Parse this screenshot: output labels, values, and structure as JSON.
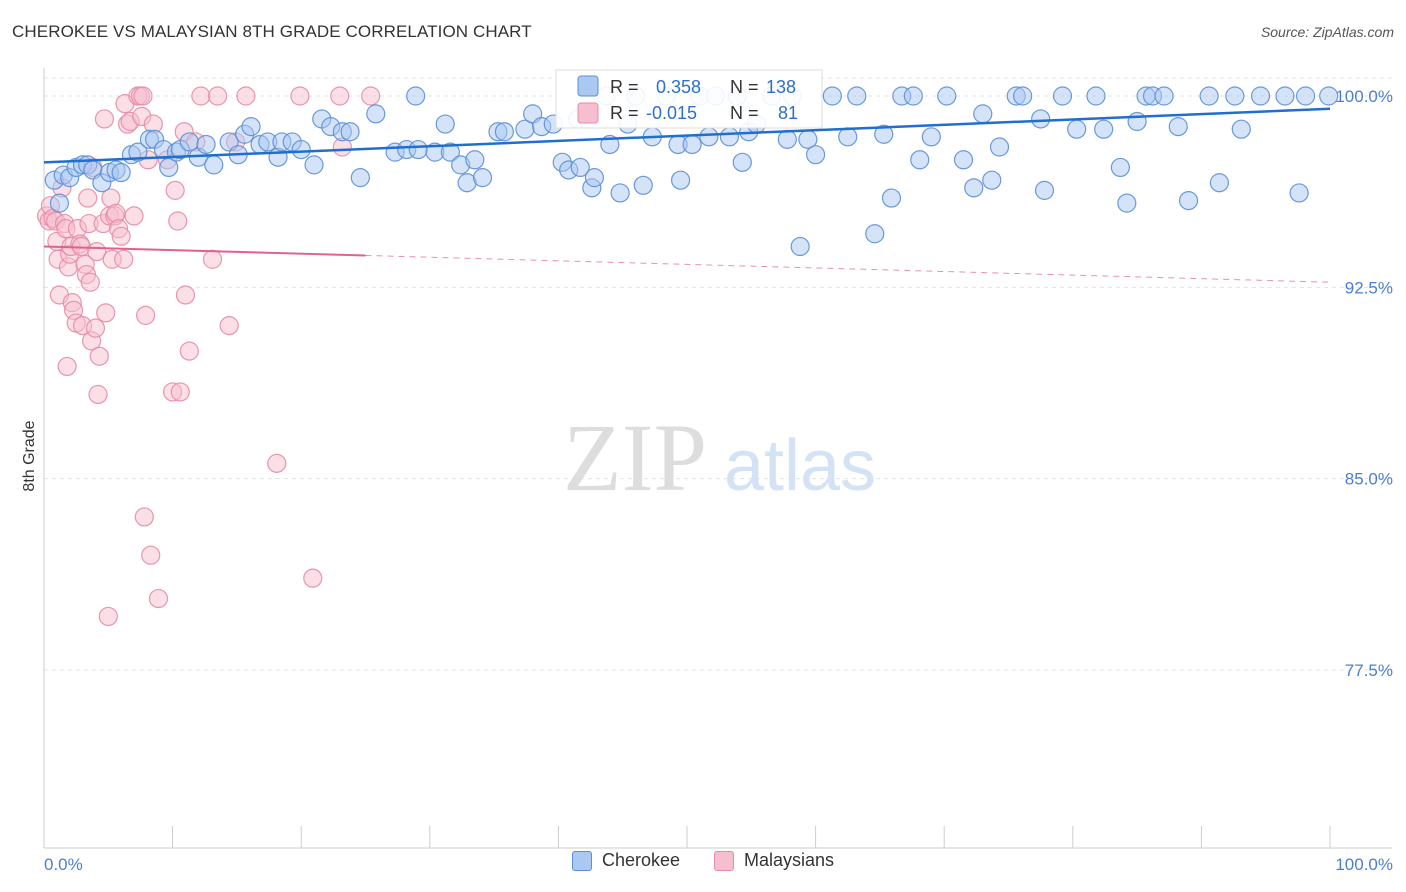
{
  "title": "CHEROKEE VS MALAYSIAN 8TH GRADE CORRELATION CHART",
  "source": "Source: ZipAtlas.com",
  "watermark": {
    "zip": "ZIP",
    "atlas": "atlas"
  },
  "colors": {
    "cherokee_fill": "#aac8f2",
    "cherokee_stroke": "#5b8fd6",
    "cherokee_line": "#1f6fd0",
    "malaysian_fill": "#f6bfd0",
    "malaysian_stroke": "#e88aa6",
    "malaysian_line": "#e0628c",
    "grid": "#e2e2e2",
    "axis_text": "#4a7fd0",
    "text": "#333333"
  },
  "stats_box": {
    "rows": [
      {
        "r_label": "R =",
        "r_value": "0.358",
        "n_label": "N =",
        "n_value": "138"
      },
      {
        "r_label": "R =",
        "r_value": "-0.015",
        "n_label": "N =",
        "n_value": "81"
      }
    ]
  },
  "chart_data": {
    "type": "scatter",
    "title": "CHEROKEE VS MALAYSIAN 8TH GRADE CORRELATION CHART",
    "xlabel": "",
    "ylabel": "8th Grade",
    "xlim": [
      0,
      100
    ],
    "ylim": [
      70,
      101
    ],
    "x_tick_labels": [
      "0.0%",
      "100.0%"
    ],
    "y_ticks": [
      77.5,
      85.0,
      92.5,
      100.0
    ],
    "y_tick_labels": [
      "77.5%",
      "85.0%",
      "92.5%",
      "100.0%"
    ],
    "grid": true,
    "legend_position": "bottom-center",
    "series": [
      {
        "name": "Cherokee",
        "R": 0.358,
        "N": 138,
        "trend": {
          "x": [
            0,
            100
          ],
          "y": [
            97.4,
            99.5
          ],
          "dashed_from": null
        },
        "points": [
          [
            0.8,
            96.7
          ],
          [
            1.2,
            95.8
          ],
          [
            1.5,
            96.9
          ],
          [
            2.0,
            96.8
          ],
          [
            2.5,
            97.2
          ],
          [
            3.0,
            97.3
          ],
          [
            3.4,
            97.3
          ],
          [
            3.8,
            97.1
          ],
          [
            4.5,
            96.6
          ],
          [
            5.1,
            97.0
          ],
          [
            5.6,
            97.1
          ],
          [
            6.0,
            97.0
          ],
          [
            6.8,
            97.7
          ],
          [
            7.3,
            97.8
          ],
          [
            8.2,
            98.3
          ],
          [
            8.6,
            98.3
          ],
          [
            9.3,
            97.9
          ],
          [
            9.7,
            97.2
          ],
          [
            10.3,
            97.8
          ],
          [
            10.6,
            97.9
          ],
          [
            11.3,
            98.2
          ],
          [
            12.0,
            97.6
          ],
          [
            12.6,
            98.1
          ],
          [
            13.2,
            97.3
          ],
          [
            14.4,
            98.2
          ],
          [
            15.1,
            97.7
          ],
          [
            15.6,
            98.5
          ],
          [
            16.1,
            98.8
          ],
          [
            16.8,
            98.1
          ],
          [
            17.4,
            98.2
          ],
          [
            18.2,
            97.6
          ],
          [
            18.5,
            98.2
          ],
          [
            19.3,
            98.2
          ],
          [
            20.0,
            97.9
          ],
          [
            21.0,
            97.3
          ],
          [
            21.6,
            99.1
          ],
          [
            22.3,
            98.8
          ],
          [
            23.2,
            98.6
          ],
          [
            23.8,
            98.6
          ],
          [
            24.6,
            96.8
          ],
          [
            25.8,
            99.3
          ],
          [
            27.3,
            97.8
          ],
          [
            28.2,
            97.9
          ],
          [
            28.9,
            100.0
          ],
          [
            29.1,
            97.9
          ],
          [
            30.4,
            97.8
          ],
          [
            31.2,
            98.9
          ],
          [
            31.6,
            97.8
          ],
          [
            32.4,
            97.3
          ],
          [
            32.9,
            96.6
          ],
          [
            33.5,
            97.5
          ],
          [
            34.1,
            96.8
          ],
          [
            35.3,
            98.6
          ],
          [
            35.8,
            98.6
          ],
          [
            37.4,
            98.7
          ],
          [
            38.0,
            99.3
          ],
          [
            38.7,
            98.8
          ],
          [
            39.6,
            98.9
          ],
          [
            40.3,
            97.4
          ],
          [
            40.8,
            97.1
          ],
          [
            41.5,
            99.1
          ],
          [
            41.7,
            97.2
          ],
          [
            42.6,
            96.4
          ],
          [
            42.8,
            96.8
          ],
          [
            43.7,
            100.0
          ],
          [
            44.0,
            98.1
          ],
          [
            44.8,
            96.2
          ],
          [
            45.4,
            98.9
          ],
          [
            46.0,
            100.0
          ],
          [
            46.6,
            96.5
          ],
          [
            47.3,
            98.4
          ],
          [
            48.4,
            100.0
          ],
          [
            49.3,
            98.1
          ],
          [
            49.5,
            96.7
          ],
          [
            50.4,
            98.1
          ],
          [
            51.0,
            100.0
          ],
          [
            51.7,
            98.4
          ],
          [
            52.2,
            100.0
          ],
          [
            53.3,
            98.4
          ],
          [
            53.9,
            100.0
          ],
          [
            54.3,
            97.4
          ],
          [
            54.8,
            98.6
          ],
          [
            55.4,
            98.9
          ],
          [
            56.6,
            100.0
          ],
          [
            57.8,
            98.3
          ],
          [
            58.2,
            100.0
          ],
          [
            58.8,
            94.1
          ],
          [
            59.4,
            98.3
          ],
          [
            60.0,
            97.7
          ],
          [
            61.3,
            100.0
          ],
          [
            62.5,
            98.4
          ],
          [
            63.2,
            100.0
          ],
          [
            64.6,
            94.6
          ],
          [
            65.3,
            98.5
          ],
          [
            65.9,
            96.0
          ],
          [
            66.7,
            100.0
          ],
          [
            67.6,
            100.0
          ],
          [
            68.1,
            97.5
          ],
          [
            69.0,
            98.4
          ],
          [
            70.2,
            100.0
          ],
          [
            71.5,
            97.5
          ],
          [
            72.3,
            96.4
          ],
          [
            73.0,
            99.3
          ],
          [
            73.7,
            96.7
          ],
          [
            74.3,
            98.0
          ],
          [
            75.6,
            100.0
          ],
          [
            76.1,
            100.0
          ],
          [
            77.5,
            99.1
          ],
          [
            77.8,
            96.3
          ],
          [
            79.2,
            100.0
          ],
          [
            80.3,
            98.7
          ],
          [
            81.8,
            100.0
          ],
          [
            82.4,
            98.7
          ],
          [
            83.7,
            97.2
          ],
          [
            84.2,
            95.8
          ],
          [
            85.0,
            99.0
          ],
          [
            85.7,
            100.0
          ],
          [
            86.2,
            100.0
          ],
          [
            87.1,
            100.0
          ],
          [
            88.2,
            98.8
          ],
          [
            89.0,
            95.9
          ],
          [
            90.6,
            100.0
          ],
          [
            91.4,
            96.6
          ],
          [
            92.6,
            100.0
          ],
          [
            93.1,
            98.7
          ],
          [
            94.6,
            100.0
          ],
          [
            96.5,
            100.0
          ],
          [
            97.6,
            96.2
          ],
          [
            98.1,
            100.0
          ],
          [
            99.9,
            100.0
          ]
        ]
      },
      {
        "name": "Malaysians",
        "R": -0.015,
        "N": 81,
        "trend": {
          "x": [
            0,
            100
          ],
          "y": [
            94.1,
            92.7
          ],
          "dashed_from": 25
        },
        "points": [
          [
            0.2,
            95.3
          ],
          [
            0.4,
            95.1
          ],
          [
            0.5,
            95.7
          ],
          [
            0.7,
            95.2
          ],
          [
            0.9,
            95.1
          ],
          [
            1.0,
            94.3
          ],
          [
            1.1,
            93.6
          ],
          [
            1.2,
            92.2
          ],
          [
            1.4,
            96.4
          ],
          [
            1.6,
            95.0
          ],
          [
            1.7,
            94.8
          ],
          [
            1.8,
            89.4
          ],
          [
            1.9,
            93.3
          ],
          [
            2.0,
            93.8
          ],
          [
            2.1,
            94.1
          ],
          [
            2.2,
            91.9
          ],
          [
            2.3,
            91.6
          ],
          [
            2.5,
            91.1
          ],
          [
            2.6,
            94.8
          ],
          [
            2.8,
            94.2
          ],
          [
            2.9,
            94.1
          ],
          [
            3.0,
            91.0
          ],
          [
            3.2,
            93.4
          ],
          [
            3.3,
            93.0
          ],
          [
            3.4,
            96.0
          ],
          [
            3.5,
            95.0
          ],
          [
            3.6,
            92.7
          ],
          [
            3.7,
            90.4
          ],
          [
            3.8,
            97.2
          ],
          [
            4.0,
            90.9
          ],
          [
            4.1,
            93.9
          ],
          [
            4.2,
            88.3
          ],
          [
            4.3,
            89.8
          ],
          [
            4.6,
            95.0
          ],
          [
            4.7,
            99.1
          ],
          [
            4.8,
            91.5
          ],
          [
            5.0,
            79.6
          ],
          [
            5.1,
            95.3
          ],
          [
            5.2,
            96.0
          ],
          [
            5.3,
            93.6
          ],
          [
            5.5,
            95.3
          ],
          [
            5.6,
            95.4
          ],
          [
            5.8,
            94.8
          ],
          [
            6.0,
            94.5
          ],
          [
            6.2,
            93.6
          ],
          [
            6.3,
            99.7
          ],
          [
            6.5,
            98.9
          ],
          [
            6.7,
            99.0
          ],
          [
            7.0,
            95.3
          ],
          [
            7.3,
            100.0
          ],
          [
            7.5,
            100.0
          ],
          [
            7.6,
            99.2
          ],
          [
            7.7,
            100.0
          ],
          [
            7.8,
            83.5
          ],
          [
            7.9,
            91.4
          ],
          [
            8.1,
            97.5
          ],
          [
            8.3,
            82.0
          ],
          [
            8.5,
            98.9
          ],
          [
            8.9,
            80.3
          ],
          [
            9.6,
            97.5
          ],
          [
            10.0,
            88.4
          ],
          [
            10.2,
            96.3
          ],
          [
            10.4,
            95.1
          ],
          [
            10.6,
            88.4
          ],
          [
            10.9,
            98.6
          ],
          [
            11.0,
            92.2
          ],
          [
            11.3,
            90.0
          ],
          [
            11.8,
            98.2
          ],
          [
            12.2,
            100.0
          ],
          [
            13.1,
            93.6
          ],
          [
            13.5,
            100.0
          ],
          [
            14.4,
            91.0
          ],
          [
            14.9,
            98.2
          ],
          [
            15.7,
            100.0
          ],
          [
            18.1,
            85.6
          ],
          [
            19.9,
            100.0
          ],
          [
            20.9,
            81.1
          ],
          [
            23.0,
            100.0
          ],
          [
            23.2,
            98.0
          ],
          [
            25.4,
            100.0
          ]
        ]
      }
    ]
  },
  "legend": {
    "items": [
      "Cherokee",
      "Malaysians"
    ]
  }
}
